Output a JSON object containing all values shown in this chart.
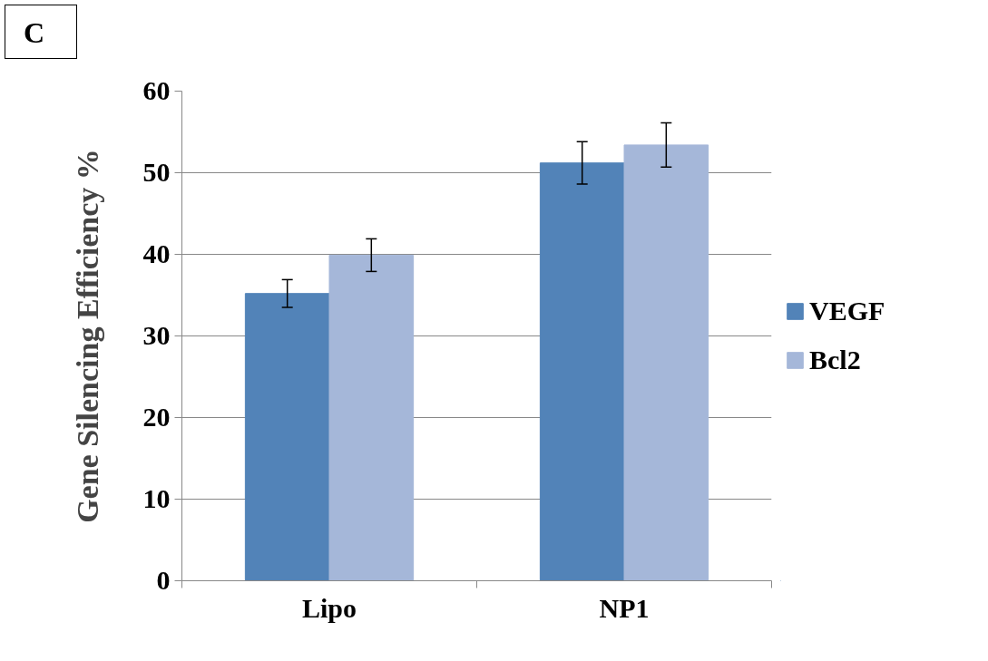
{
  "chart_data": {
    "type": "bar",
    "ylabel": "Gene Silencing Efficiency %",
    "categories": [
      "Lipo",
      "NP1"
    ],
    "series": [
      {
        "name": "VEGF",
        "color": "#5283b8",
        "values": [
          35.2,
          51.2
        ],
        "errors": [
          1.7,
          2.6
        ]
      },
      {
        "name": "Bcl2",
        "color": "#a5b7d9",
        "values": [
          39.9,
          53.4
        ],
        "errors": [
          2.0,
          2.7
        ]
      }
    ],
    "ylim": [
      0,
      60
    ],
    "yticks": [
      0,
      10,
      20,
      30,
      40,
      50,
      60
    ],
    "grid": "y",
    "legend": "right",
    "annotations": [
      "C"
    ]
  }
}
